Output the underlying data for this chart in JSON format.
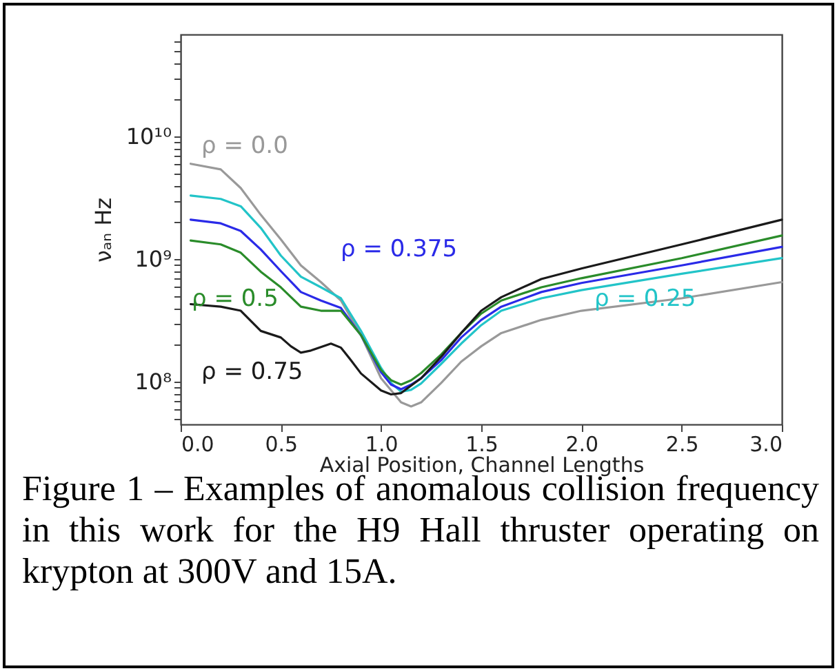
{
  "chart_data": {
    "type": "line",
    "xlabel": "Axial Position, Channel Lengths",
    "ylabel": "νₐₙ Hz",
    "log": "y",
    "legend": false,
    "grid": false,
    "xlim": [
      0,
      3
    ],
    "xticks": [
      {
        "value": 0,
        "label": "0.0"
      },
      0.5,
      {
        "value": 1,
        "label": "1.0"
      },
      1.5,
      {
        "value": 2,
        "label": "2.0"
      },
      2.5,
      {
        "value": 3,
        "label": "3.0"
      }
    ],
    "ylim": [
      45000000,
      68000000000
    ],
    "yticks": [
      {
        "value": 50000000,
        "label": null
      },
      {
        "value": 60000000,
        "label": null
      },
      {
        "value": 70000000,
        "label": null
      },
      {
        "value": 80000000,
        "label": null
      },
      {
        "value": 90000000,
        "label": null
      },
      {
        "value": 100000000,
        "label": "10⁸"
      },
      {
        "value": 200000000,
        "label": null
      },
      {
        "value": 300000000,
        "label": null
      },
      {
        "value": 400000000,
        "label": null
      },
      {
        "value": 500000000,
        "label": null
      },
      {
        "value": 600000000,
        "label": null
      },
      {
        "value": 700000000,
        "label": null
      },
      {
        "value": 800000000,
        "label": null
      },
      {
        "value": 900000000,
        "label": null
      },
      {
        "value": 1000000000,
        "label": "10⁹"
      },
      {
        "value": 2000000000,
        "label": null
      },
      {
        "value": 3000000000,
        "label": null
      },
      {
        "value": 4000000000,
        "label": null
      },
      {
        "value": 5000000000,
        "label": null
      },
      {
        "value": 6000000000,
        "label": null
      },
      {
        "value": 7000000000,
        "label": null
      },
      {
        "value": 8000000000,
        "label": null
      },
      {
        "value": 9000000000,
        "label": null
      },
      {
        "value": 10000000000,
        "label": "10¹⁰"
      },
      {
        "value": 20000000000,
        "label": null
      },
      {
        "value": 30000000000,
        "label": null
      },
      {
        "value": 40000000000,
        "label": null
      },
      {
        "value": 50000000000,
        "label": null
      },
      {
        "value": 60000000000,
        "label": null
      }
    ],
    "series": [
      {
        "name": "ρ = 0.0",
        "color": "#999999",
        "x": [
          0.05,
          0.2,
          0.3,
          0.4,
          0.5,
          0.6,
          0.7,
          0.8,
          0.9,
          1.0,
          1.1,
          1.15,
          1.2,
          1.3,
          1.4,
          1.5,
          1.6,
          1.8,
          2.0,
          2.5,
          3.0
        ],
        "values": [
          6000000000.0,
          5400000000.0,
          3800000000.0,
          2300000000.0,
          1450000000.0,
          890000000.0,
          650000000.0,
          460000000.0,
          240000000.0,
          107000000.0,
          68000000.0,
          63000000.0,
          68000000.0,
          98000000.0,
          146000000.0,
          195000000.0,
          250000000.0,
          320000000.0,
          380000000.0,
          480000000.0,
          650000000.0
        ]
      },
      {
        "name": "ρ = 0.25",
        "color": "#22c4c8",
        "x": [
          0.05,
          0.2,
          0.3,
          0.4,
          0.5,
          0.6,
          0.7,
          0.8,
          0.9,
          1.0,
          1.05,
          1.1,
          1.15,
          1.2,
          1.3,
          1.4,
          1.5,
          1.6,
          1.8,
          2.0,
          2.5,
          3.0
        ],
        "values": [
          3300000000.0,
          3100000000.0,
          2700000000.0,
          1800000000.0,
          1070000000.0,
          720000000.0,
          590000000.0,
          480000000.0,
          260000000.0,
          130000000.0,
          98000000.0,
          83000000.0,
          86000000.0,
          97000000.0,
          140000000.0,
          205000000.0,
          290000000.0,
          380000000.0,
          480000000.0,
          560000000.0,
          760000000.0,
          1020000000.0
        ]
      },
      {
        "name": "ρ = 0.375",
        "color": "#2a2ae8",
        "x": [
          0.05,
          0.2,
          0.3,
          0.4,
          0.5,
          0.6,
          0.7,
          0.8,
          0.9,
          1.0,
          1.05,
          1.1,
          1.15,
          1.2,
          1.3,
          1.4,
          1.5,
          1.6,
          1.8,
          2.0,
          2.5,
          3.0
        ],
        "values": [
          2100000000.0,
          1960000000.0,
          1700000000.0,
          1200000000.0,
          800000000.0,
          540000000.0,
          460000000.0,
          400000000.0,
          240000000.0,
          120000000.0,
          95000000.0,
          87000000.0,
          95000000.0,
          107000000.0,
          150000000.0,
          230000000.0,
          320000000.0,
          410000000.0,
          540000000.0,
          640000000.0,
          890000000.0,
          1260000000.0
        ]
      },
      {
        "name": "ρ = 0.5",
        "color": "#2a8c2a",
        "x": [
          0.05,
          0.2,
          0.3,
          0.4,
          0.5,
          0.6,
          0.7,
          0.8,
          0.9,
          1.0,
          1.05,
          1.1,
          1.15,
          1.2,
          1.3,
          1.4,
          1.5,
          1.6,
          1.8,
          2.0,
          2.5,
          3.0
        ],
        "values": [
          1420000000.0,
          1320000000.0,
          1130000000.0,
          790000000.0,
          590000000.0,
          410000000.0,
          380000000.0,
          380000000.0,
          240000000.0,
          125000000.0,
          103000000.0,
          95000000.0,
          103000000.0,
          118000000.0,
          167000000.0,
          250000000.0,
          360000000.0,
          460000000.0,
          590000000.0,
          700000000.0,
          1020000000.0,
          1560000000.0
        ]
      },
      {
        "name": "ρ = 0.75",
        "color": "#1a1a1a",
        "x": [
          0.05,
          0.2,
          0.3,
          0.4,
          0.5,
          0.55,
          0.6,
          0.65,
          0.75,
          0.8,
          0.85,
          0.9,
          1.0,
          1.05,
          1.1,
          1.2,
          1.3,
          1.4,
          1.5,
          1.6,
          1.8,
          2.0,
          2.5,
          3.0
        ],
        "values": [
          430000000.0,
          410000000.0,
          380000000.0,
          260000000.0,
          230000000.0,
          195000000.0,
          173000000.0,
          180000000.0,
          205000000.0,
          190000000.0,
          150000000.0,
          117000000.0,
          85000000.0,
          79000000.0,
          81000000.0,
          107000000.0,
          160000000.0,
          250000000.0,
          380000000.0,
          490000000.0,
          690000000.0,
          840000000.0,
          1320000000.0,
          2100000000.0
        ]
      }
    ],
    "annotations": [
      "Figure 1 – Examples of anomalous collision frequency in this work for the H9 Hall thruster operating on krypton at 300V and 15A."
    ]
  }
}
